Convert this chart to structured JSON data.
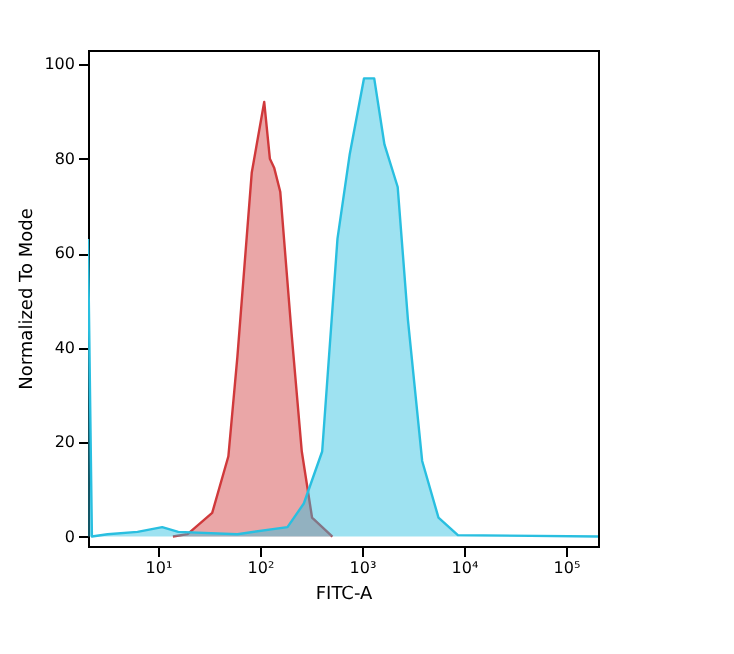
{
  "chart_data": {
    "type": "area",
    "xlabel": "FITC-A",
    "ylabel": "Normalized To Mode",
    "log": "x",
    "xlim": [
      2.06,
      206000
    ],
    "ylim": [
      -2,
      103
    ],
    "xticks": [
      {
        "value": 10,
        "label": "10¹"
      },
      {
        "value": 100,
        "label": "10²"
      },
      {
        "value": 1000,
        "label": "10³"
      },
      {
        "value": 10000,
        "label": "10⁴"
      },
      {
        "value": 100000,
        "label": "10⁵"
      }
    ],
    "yticks": [
      0,
      20,
      40,
      60,
      80,
      100
    ],
    "grid": false,
    "series": [
      {
        "color": "#d0393b",
        "x": [
          14,
          19.5,
          34,
          49,
          60,
          83,
          110,
          125,
          138,
          158,
          204,
          257,
          324,
          513
        ],
        "values": [
          0,
          0.5,
          5,
          17,
          38,
          77,
          92,
          80,
          78,
          73,
          43,
          18,
          4,
          0
        ]
      },
      {
        "color": "#29bfe0",
        "x": [
          2.06,
          2.25,
          3.2,
          6.3,
          11,
          15.8,
          60,
          186,
          269,
          407,
          575,
          759,
          1047,
          1318,
          1660,
          2239,
          2818,
          3890,
          5623,
          8710,
          206000
        ],
        "values": [
          63,
          0,
          0.5,
          1,
          2,
          1,
          0.5,
          2,
          7,
          18,
          63,
          81,
          97,
          97,
          83,
          74,
          46,
          16,
          4,
          0.3,
          0
        ]
      }
    ]
  }
}
